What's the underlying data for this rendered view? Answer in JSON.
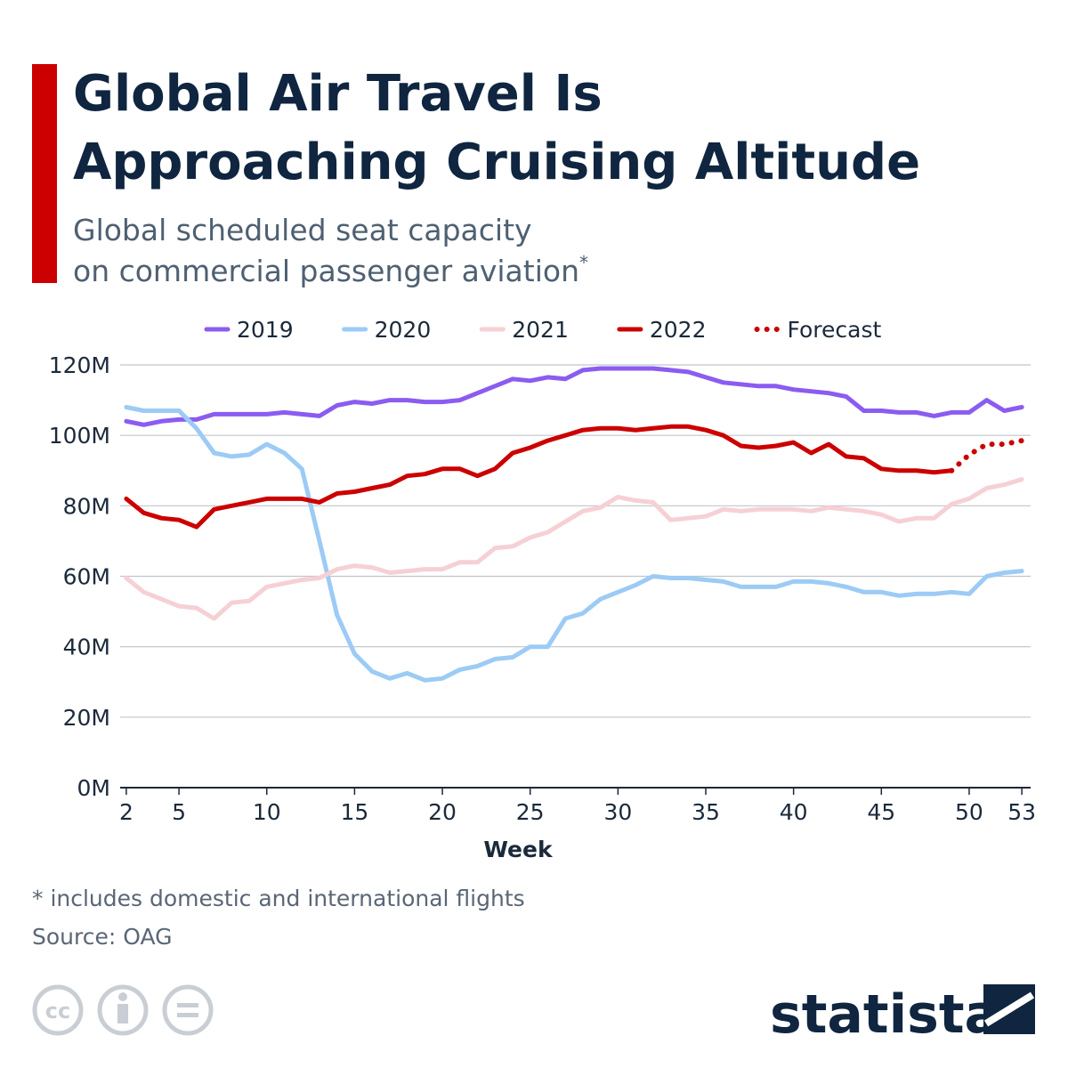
{
  "chart_data": {
    "type": "line",
    "title": [
      "Global Air Travel Is",
      "Approaching Cruising Altitude"
    ],
    "subtitle": [
      "Global scheduled seat capacity",
      "on commercial passenger aviation"
    ],
    "subtitle_mark": "*",
    "x_label": "Week",
    "footnote": "* includes domestic and international flights",
    "source": "Source: OAG",
    "brand": "statista",
    "x": [
      2,
      3,
      4,
      5,
      6,
      7,
      8,
      9,
      10,
      11,
      12,
      13,
      14,
      15,
      16,
      17,
      18,
      19,
      20,
      21,
      22,
      23,
      24,
      25,
      26,
      27,
      28,
      29,
      30,
      31,
      32,
      33,
      34,
      35,
      36,
      37,
      38,
      39,
      40,
      41,
      42,
      43,
      44,
      45,
      46,
      47,
      48,
      49,
      50,
      51,
      52,
      53
    ],
    "xlim": [
      1.65,
      53.5
    ],
    "xticks": [
      2,
      5,
      10,
      15,
      20,
      25,
      30,
      35,
      40,
      45,
      50,
      53
    ],
    "ylim": [
      0,
      120
    ],
    "yticks": [
      {
        "value": 0,
        "label": "0M"
      },
      {
        "value": 20,
        "label": "20M"
      },
      {
        "value": 40,
        "label": "40M"
      },
      {
        "value": 60,
        "label": "60M"
      },
      {
        "value": 80,
        "label": "80M"
      },
      {
        "value": 100,
        "label": "100M"
      },
      {
        "value": 120,
        "label": "120M"
      }
    ],
    "grid": true,
    "legend": "top",
    "series": [
      {
        "name": "2019",
        "color": "#8b5cf0",
        "style": "solid",
        "values": [
          104,
          103,
          104,
          104.5,
          104.5,
          106,
          106,
          106,
          106,
          106.5,
          106,
          105.5,
          108.5,
          109.5,
          109,
          110,
          110,
          109.5,
          109.5,
          110,
          112,
          114,
          116,
          115.5,
          116.5,
          116,
          118.5,
          119,
          119,
          119,
          119,
          118.5,
          118,
          116.5,
          115,
          114.5,
          114,
          114,
          113,
          112.5,
          112,
          111,
          107,
          107,
          106.5,
          106.5,
          105.5,
          106.5,
          106.5,
          110,
          107,
          108
        ]
      },
      {
        "name": "2020",
        "color": "#9ccbf5",
        "style": "solid",
        "values": [
          108,
          107,
          107,
          107,
          102,
          95,
          94,
          94.5,
          97.5,
          95,
          90.5,
          70,
          49,
          38,
          33,
          31,
          32.5,
          30.5,
          31,
          33.5,
          34.5,
          36.5,
          37,
          40,
          40,
          48,
          49.5,
          53.5,
          55.5,
          57.5,
          60,
          59.5,
          59.5,
          59,
          58.5,
          57,
          57,
          57,
          58.5,
          58.5,
          58,
          57,
          55.5,
          55.5,
          54.5,
          55,
          55,
          55.5,
          55,
          60,
          61,
          61.5
        ]
      },
      {
        "name": "2021",
        "color": "#f6d0d4",
        "style": "solid",
        "values": [
          59.5,
          55.5,
          53.5,
          51.5,
          51,
          48,
          52.5,
          53,
          57,
          58,
          59,
          59.5,
          62,
          63,
          62.5,
          61,
          61.5,
          62,
          62,
          64,
          64,
          68,
          68.5,
          71,
          72.5,
          75.5,
          78.5,
          79.5,
          82.5,
          81.5,
          81,
          76,
          76.5,
          77,
          79,
          78.5,
          79,
          79,
          79,
          78.5,
          79.5,
          79,
          78.5,
          77.5,
          75.5,
          76.5,
          76.5,
          80.5,
          82,
          85,
          86,
          87.5
        ]
      },
      {
        "name": "2022",
        "color": "#cc0000",
        "style": "solid",
        "values": [
          82,
          78,
          76.5,
          76,
          74,
          79,
          80,
          81,
          82,
          82,
          82,
          81,
          83.5,
          84,
          85,
          86,
          88.5,
          89,
          90.5,
          90.5,
          88.5,
          90.5,
          95,
          96.5,
          98.5,
          100,
          101.5,
          102,
          102,
          101.5,
          102,
          102.5,
          102.5,
          101.5,
          100,
          97,
          96.5,
          97,
          98,
          95,
          97.5,
          94,
          93.5,
          90.5,
          90,
          90,
          89.5,
          90,
          null,
          null,
          null,
          null
        ]
      },
      {
        "name": "Forecast",
        "color": "#cc0000",
        "style": "dotted",
        "values": [
          null,
          null,
          null,
          null,
          null,
          null,
          null,
          null,
          null,
          null,
          null,
          null,
          null,
          null,
          null,
          null,
          null,
          null,
          null,
          null,
          null,
          null,
          null,
          null,
          null,
          null,
          null,
          null,
          null,
          null,
          null,
          null,
          null,
          null,
          null,
          null,
          null,
          null,
          null,
          null,
          null,
          null,
          null,
          null,
          null,
          null,
          null,
          90,
          94.5,
          97.5,
          97.5,
          98.5
        ]
      }
    ]
  }
}
